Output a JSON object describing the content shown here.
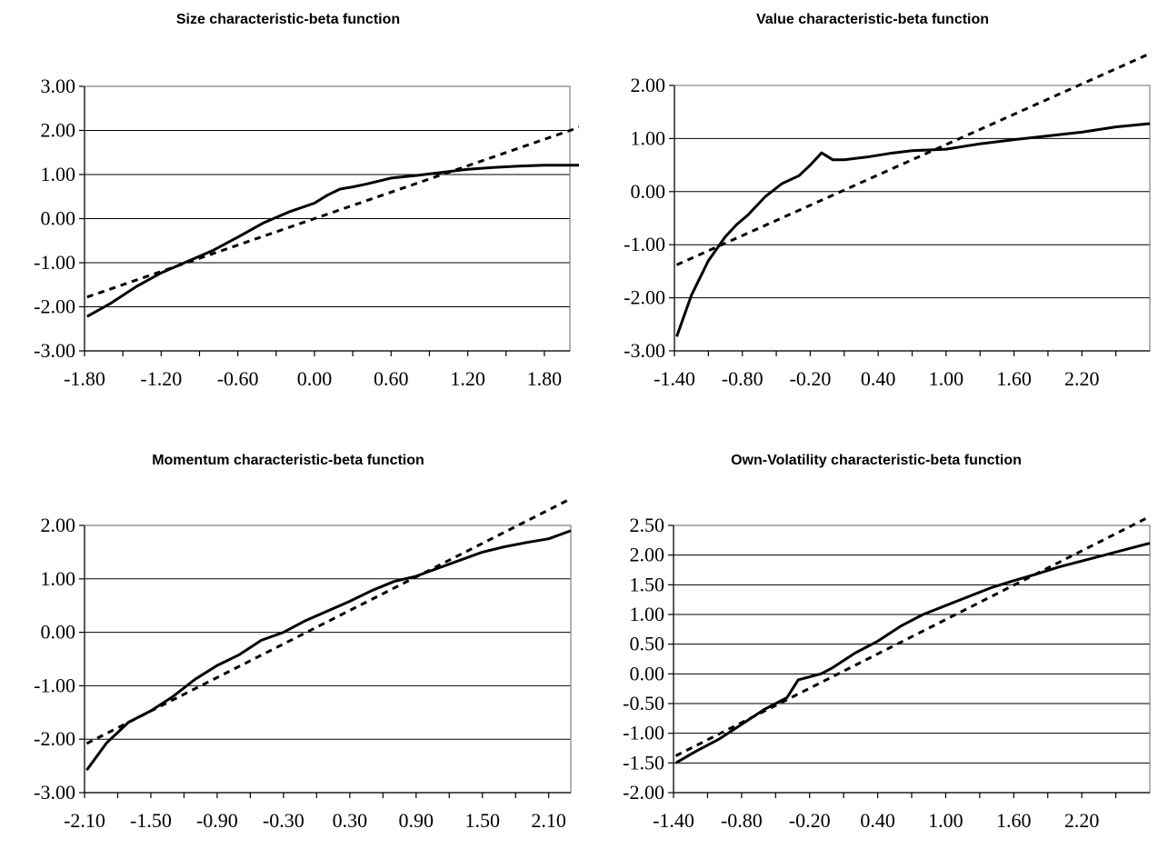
{
  "chart_data": [
    {
      "type": "line",
      "title": "Size characteristic-beta function",
      "xlabel": "",
      "ylabel": "",
      "xlim": [
        -1.8,
        2.0
      ],
      "ylim": [
        -3.0,
        3.0
      ],
      "x_tick_labels": [
        "-1.80",
        "-1.20",
        "-0.60",
        "0.00",
        "0.60",
        "1.20",
        "1.80"
      ],
      "y_tick_labels": [
        "3.00",
        "2.00",
        "1.00",
        "0.00",
        "-1.00",
        "-2.00",
        "-3.00"
      ],
      "grid": true,
      "series": [
        {
          "style": "solid",
          "x": [
            -1.78,
            -1.6,
            -1.4,
            -1.2,
            -1.0,
            -0.8,
            -0.6,
            -0.4,
            -0.2,
            0.0,
            0.1,
            0.2,
            0.3,
            0.4,
            0.6,
            0.8,
            1.0,
            1.2,
            1.4,
            1.6,
            1.8,
            2.0,
            2.1
          ],
          "y": [
            -2.22,
            -1.93,
            -1.55,
            -1.23,
            -0.98,
            -0.73,
            -0.42,
            -0.1,
            0.15,
            0.35,
            0.53,
            0.67,
            0.72,
            0.78,
            0.92,
            0.98,
            1.05,
            1.12,
            1.16,
            1.19,
            1.21,
            1.21,
            1.21
          ]
        },
        {
          "style": "dashed",
          "x": [
            -1.78,
            2.1
          ],
          "y": [
            -1.78,
            2.1
          ]
        }
      ]
    },
    {
      "type": "line",
      "title": "Value characteristic-beta function",
      "xlabel": "",
      "ylabel": "",
      "xlim": [
        -1.4,
        2.8
      ],
      "ylim": [
        -3.0,
        2.0
      ],
      "x_tick_labels": [
        "-1.40",
        "-0.80",
        "-0.20",
        "0.40",
        "1.00",
        "1.60",
        "2.20"
      ],
      "y_tick_labels": [
        "2.00",
        "1.00",
        "0.00",
        "-1.00",
        "-2.00",
        "-3.00"
      ],
      "grid": true,
      "series": [
        {
          "style": "solid",
          "x": [
            -1.38,
            -1.25,
            -1.1,
            -0.95,
            -0.85,
            -0.75,
            -0.6,
            -0.45,
            -0.3,
            -0.2,
            -0.1,
            0.0,
            0.1,
            0.3,
            0.5,
            0.7,
            1.0,
            1.3,
            1.6,
            1.9,
            2.2,
            2.5,
            2.8
          ],
          "y": [
            -2.73,
            -1.95,
            -1.3,
            -0.85,
            -0.62,
            -0.44,
            -0.1,
            0.15,
            0.3,
            0.5,
            0.73,
            0.6,
            0.6,
            0.65,
            0.72,
            0.77,
            0.8,
            0.9,
            0.98,
            1.05,
            1.12,
            1.22,
            1.28
          ]
        },
        {
          "style": "dashed",
          "x": [
            -1.38,
            2.8
          ],
          "y": [
            -1.38,
            2.6
          ]
        }
      ]
    },
    {
      "type": "line",
      "title": "Momentum characteristic-beta function",
      "xlabel": "",
      "ylabel": "",
      "xlim": [
        -2.1,
        2.3
      ],
      "ylim": [
        -3.0,
        2.0
      ],
      "x_tick_labels": [
        "-2.10",
        "-1.50",
        "-0.90",
        "-0.30",
        "0.30",
        "0.90",
        "1.50",
        "2.10"
      ],
      "y_tick_labels": [
        "2.00",
        "1.00",
        "0.00",
        "-1.00",
        "-2.00",
        "-3.00"
      ],
      "grid": true,
      "series": [
        {
          "style": "solid",
          "x": [
            -2.08,
            -1.9,
            -1.7,
            -1.5,
            -1.3,
            -1.1,
            -0.9,
            -0.7,
            -0.5,
            -0.3,
            -0.1,
            0.1,
            0.3,
            0.5,
            0.7,
            0.9,
            1.1,
            1.3,
            1.5,
            1.7,
            1.9,
            2.1,
            2.3
          ],
          "y": [
            -2.58,
            -2.07,
            -1.68,
            -1.47,
            -1.2,
            -0.88,
            -0.62,
            -0.42,
            -0.15,
            0.0,
            0.22,
            0.4,
            0.58,
            0.78,
            0.95,
            1.05,
            1.2,
            1.35,
            1.5,
            1.6,
            1.68,
            1.75,
            1.9
          ]
        },
        {
          "style": "dashed",
          "x": [
            -2.08,
            2.3
          ],
          "y": [
            -2.08,
            2.5
          ]
        }
      ]
    },
    {
      "type": "line",
      "title": "Own-Volatility characteristic-beta function",
      "xlabel": "",
      "ylabel": "",
      "xlim": [
        -1.4,
        2.8
      ],
      "ylim": [
        -2.0,
        2.5
      ],
      "x_tick_labels": [
        "-1.40",
        "-0.80",
        "-0.20",
        "0.40",
        "1.00",
        "1.60",
        "2.20"
      ],
      "y_tick_labels": [
        "2.50",
        "2.00",
        "1.50",
        "1.00",
        "0.50",
        "0.00",
        "-0.50",
        "-1.00",
        "-1.50",
        "-2.00"
      ],
      "grid": true,
      "series": [
        {
          "style": "solid",
          "x": [
            -1.38,
            -1.2,
            -1.0,
            -0.8,
            -0.6,
            -0.4,
            -0.3,
            -0.2,
            -0.1,
            0.0,
            0.2,
            0.4,
            0.6,
            0.8,
            1.0,
            1.2,
            1.4,
            1.6,
            1.8,
            2.0,
            2.2,
            2.4,
            2.6,
            2.8
          ],
          "y": [
            -1.5,
            -1.3,
            -1.1,
            -0.85,
            -0.6,
            -0.4,
            -0.1,
            -0.05,
            0.0,
            0.1,
            0.35,
            0.55,
            0.8,
            1.0,
            1.15,
            1.3,
            1.45,
            1.57,
            1.68,
            1.8,
            1.9,
            2.0,
            2.1,
            2.2
          ]
        },
        {
          "style": "dashed",
          "x": [
            -1.38,
            2.8
          ],
          "y": [
            -1.38,
            2.65
          ]
        }
      ]
    }
  ]
}
